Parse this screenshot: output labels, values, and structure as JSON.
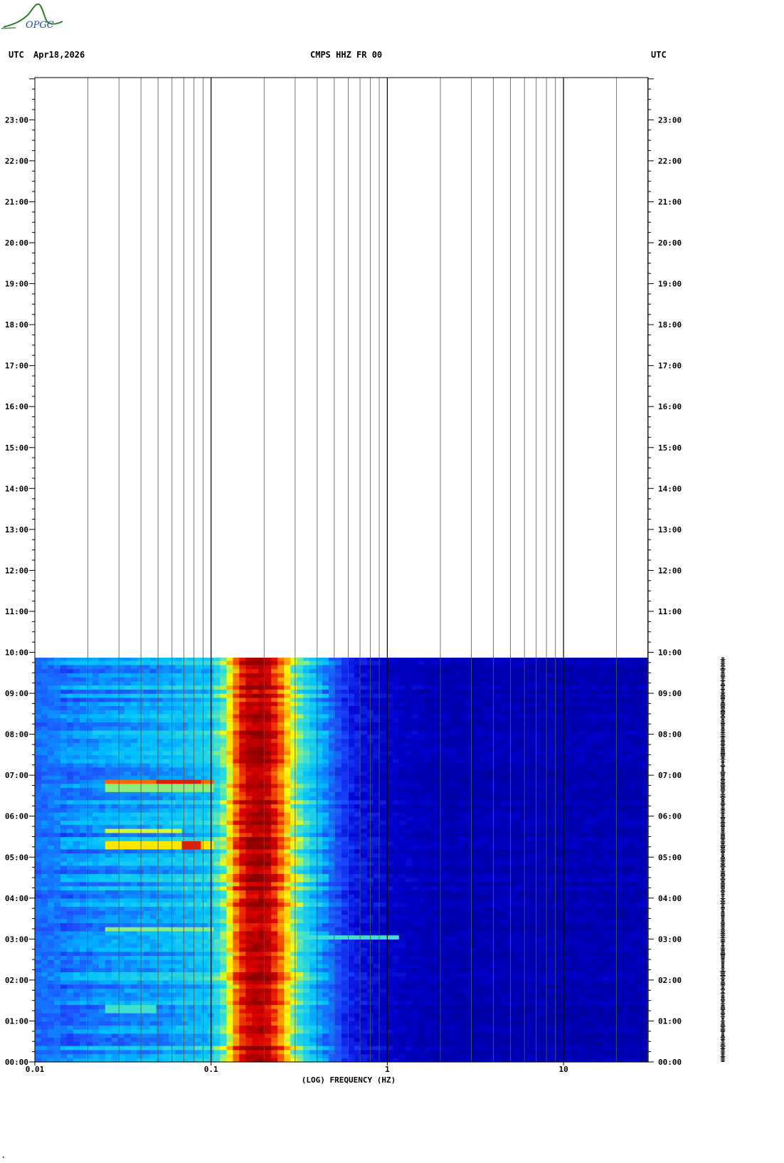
{
  "header": {
    "left_tz": "UTC",
    "date": "Apr18,2026",
    "station": "CMPS HHZ FR 00",
    "right_tz": "UTC"
  },
  "logo": {
    "text": "OPGC",
    "color": "#2e7d32",
    "text_color": "#1a4fa0"
  },
  "chart_data": {
    "type": "heatmap",
    "title": "CMPS HHZ FR 00",
    "xlabel": "(LOG) FREQUENCY (HZ)",
    "ylabel": "",
    "x_scale": "log",
    "xlim": [
      0.01,
      30
    ],
    "x_ticks": [
      {
        "value": 0.01,
        "label": "0.01"
      },
      {
        "value": 0.1,
        "label": "0.1"
      },
      {
        "value": 1,
        "label": "1"
      },
      {
        "value": 10,
        "label": "10"
      }
    ],
    "y_axis": "time UTC (hours of day)",
    "ylim": [
      0,
      24
    ],
    "y_ticks": [
      {
        "value": 0,
        "label": "00:00"
      },
      {
        "value": 1,
        "label": "01:00"
      },
      {
        "value": 2,
        "label": "02:00"
      },
      {
        "value": 3,
        "label": "03:00"
      },
      {
        "value": 4,
        "label": "04:00"
      },
      {
        "value": 5,
        "label": "05:00"
      },
      {
        "value": 6,
        "label": "06:00"
      },
      {
        "value": 7,
        "label": "07:00"
      },
      {
        "value": 8,
        "label": "08:00"
      },
      {
        "value": 9,
        "label": "09:00"
      },
      {
        "value": 10,
        "label": "10:00"
      },
      {
        "value": 11,
        "label": "11:00"
      },
      {
        "value": 12,
        "label": "12:00"
      },
      {
        "value": 13,
        "label": "13:00"
      },
      {
        "value": 14,
        "label": "14:00"
      },
      {
        "value": 15,
        "label": "15:00"
      },
      {
        "value": 16,
        "label": "16:00"
      },
      {
        "value": 17,
        "label": "17:00"
      },
      {
        "value": 18,
        "label": "18:00"
      },
      {
        "value": 19,
        "label": "19:00"
      },
      {
        "value": 20,
        "label": "20:00"
      },
      {
        "value": 21,
        "label": "21:00"
      },
      {
        "value": 22,
        "label": "22:00"
      },
      {
        "value": 23,
        "label": "23:00"
      }
    ],
    "data_time_range_hours": [
      0,
      9.87
    ],
    "grid": true,
    "colormap": [
      "#00008b",
      "#0000cd",
      "#1e50ff",
      "#00bfff",
      "#40e0d0",
      "#ffff00",
      "#ff8c00",
      "#dd0000",
      "#8b0000"
    ],
    "spectral_profile": {
      "frequencies_hz": [
        0.01,
        0.025,
        0.05,
        0.1,
        0.12,
        0.14,
        0.16,
        0.2,
        0.24,
        0.27,
        0.3,
        0.35,
        0.45,
        0.6,
        1,
        2,
        30
      ],
      "intensity": [
        0.28,
        0.34,
        0.36,
        0.42,
        0.55,
        0.8,
        0.92,
        0.96,
        0.82,
        0.68,
        0.55,
        0.45,
        0.32,
        0.18,
        0.12,
        0.08,
        0.08
      ]
    },
    "events": [
      {
        "time_hours": 6.85,
        "freq_range_hz": [
          0.025,
          0.1
        ],
        "peak_freq_range_hz": [
          0.05,
          0.09
        ],
        "intensity": 0.78
      },
      {
        "time_hours": 6.7,
        "freq_range_hz": [
          0.025,
          0.1
        ],
        "intensity": 0.55
      },
      {
        "time_hours": 5.62,
        "freq_range_hz": [
          0.025,
          0.07
        ],
        "intensity": 0.6
      },
      {
        "time_hours": 5.28,
        "freq_range_hz": [
          0.025,
          0.1
        ],
        "peak_freq_range_hz": [
          0.07,
          0.09
        ],
        "intensity": 0.65
      },
      {
        "time_hours": 3.25,
        "freq_range_hz": [
          0.025,
          0.1
        ],
        "intensity": 0.55
      },
      {
        "time_hours": 3.05,
        "freq_range_hz": [
          0.3,
          1.2
        ],
        "intensity": 0.5
      },
      {
        "time_hours": 1.3,
        "freq_range_hz": [
          0.025,
          0.05
        ],
        "intensity": 0.5
      }
    ]
  }
}
